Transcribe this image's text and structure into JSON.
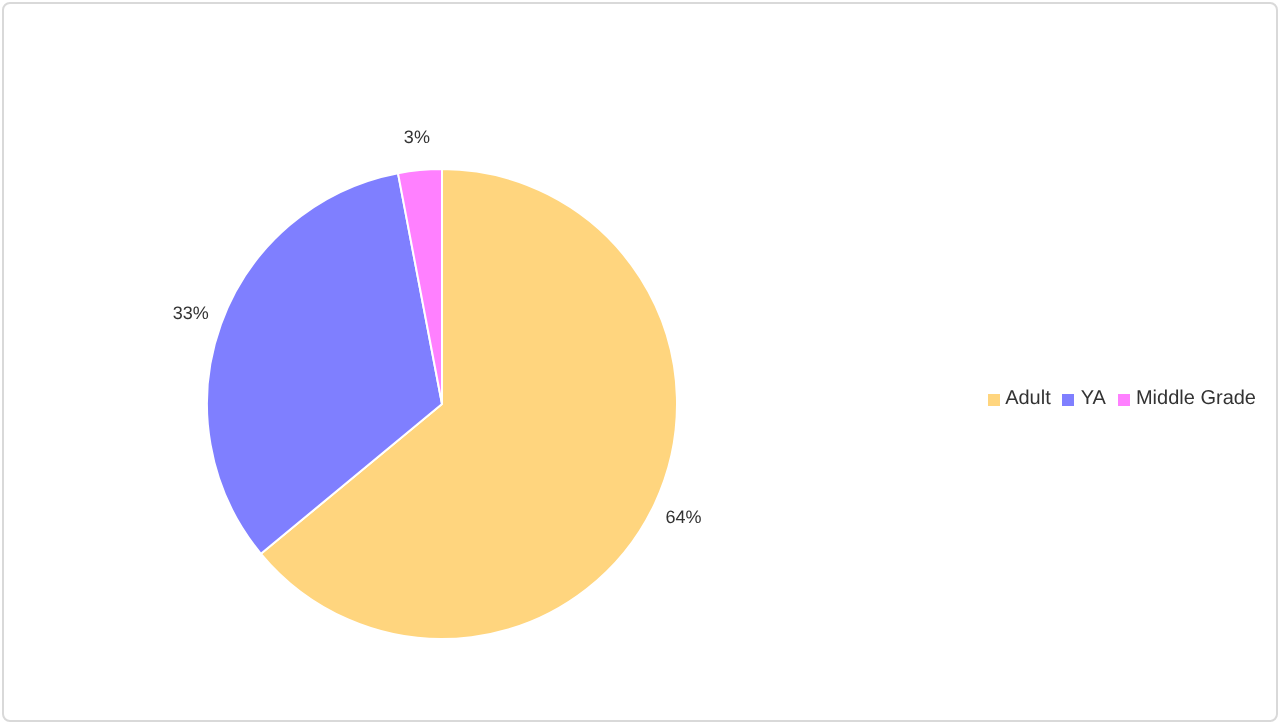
{
  "chart_data": {
    "type": "pie",
    "categories": [
      "Adult",
      "YA",
      "Middle Grade"
    ],
    "values": [
      64,
      33,
      3
    ],
    "value_labels": [
      "64%",
      "33%",
      "3%"
    ],
    "colors": [
      "#ffd57e",
      "#7f7fff",
      "#ff80ff"
    ],
    "legend": "right"
  }
}
